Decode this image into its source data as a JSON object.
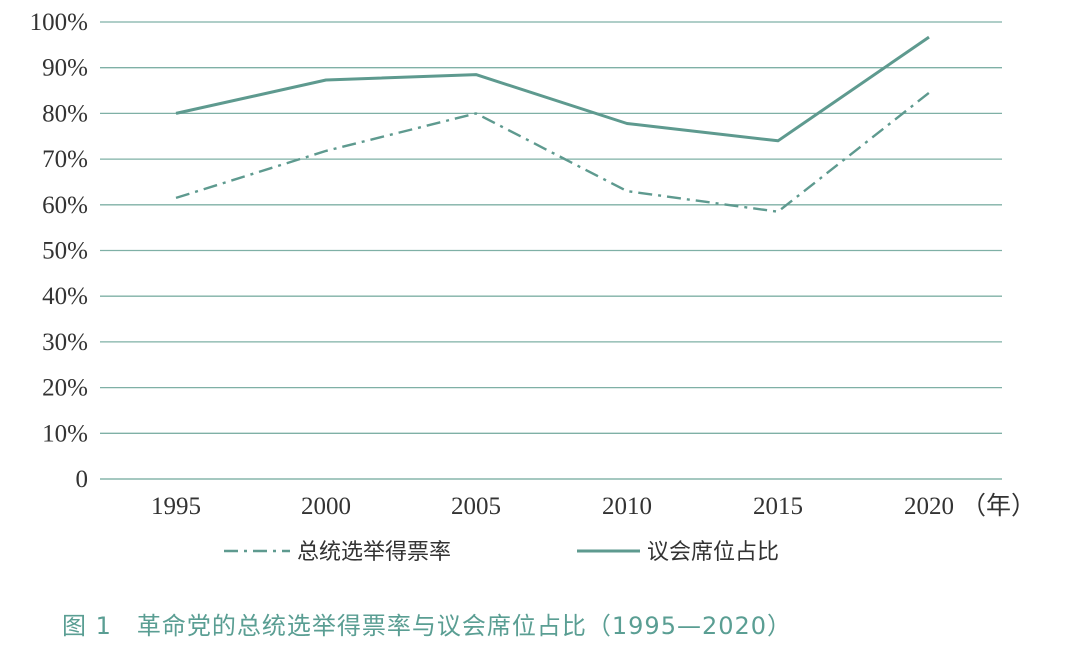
{
  "chart_data": {
    "type": "line",
    "categories": [
      "1995",
      "2000",
      "2005",
      "2010",
      "2015",
      "2020"
    ],
    "x_unit": "（年）",
    "y_ticks": [
      "0",
      "10%",
      "20%",
      "30%",
      "40%",
      "50%",
      "60%",
      "70%",
      "80%",
      "90%",
      "100%"
    ],
    "ylim": [
      0,
      100
    ],
    "grid": true,
    "legend_position": "bottom",
    "series": [
      {
        "name": "总统选举得票率",
        "style": "dash-dot",
        "values": [
          61.5,
          71.8,
          80.0,
          63.0,
          58.5,
          84.5
        ]
      },
      {
        "name": "议会席位占比",
        "style": "solid",
        "values": [
          80.0,
          87.3,
          88.5,
          77.8,
          74.0,
          96.7
        ]
      }
    ],
    "caption": "图 1　革命党的总统选举得票率与议会席位占比（1995—2020）",
    "colors": {
      "line": "#5e9a8f",
      "grid": "#7fb0a6",
      "caption": "#5a9e93"
    }
  }
}
